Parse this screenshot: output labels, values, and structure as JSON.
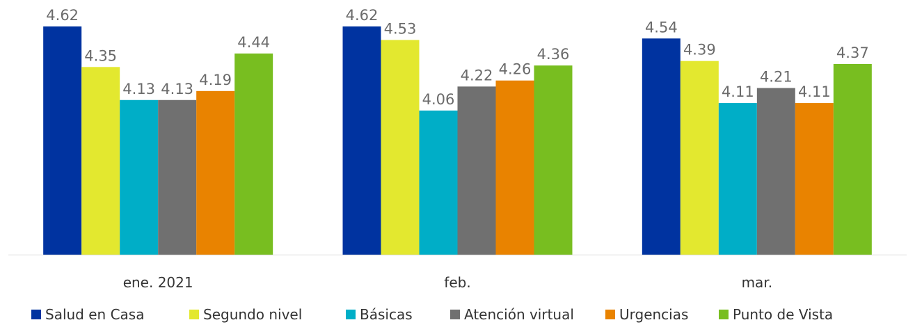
{
  "chart_data": {
    "type": "bar",
    "categories": [
      "ene. 2021",
      "feb.",
      "mar."
    ],
    "series": [
      {
        "name": "Salud en Casa",
        "color": "#0033a0",
        "values": [
          4.62,
          4.62,
          4.54
        ],
        "labels": [
          "4.62",
          "4.62",
          "4.54"
        ]
      },
      {
        "name": "Segundo nivel",
        "color": "#e3e82f",
        "values": [
          4.35,
          4.53,
          4.39
        ],
        "labels": [
          "4.35",
          "4.53",
          "4.39"
        ]
      },
      {
        "name": "Básicas",
        "color": "#00aec7",
        "values": [
          4.13,
          4.06,
          4.11
        ],
        "labels": [
          "4.13",
          "4.06",
          "4.11"
        ]
      },
      {
        "name": "Atención virtual",
        "color": "#707070",
        "values": [
          4.13,
          4.22,
          4.21
        ],
        "labels": [
          "4.13",
          "4.22",
          "4.21"
        ]
      },
      {
        "name": "Urgencias",
        "color": "#e98300",
        "values": [
          4.19,
          4.26,
          4.11
        ],
        "labels": [
          "4.19",
          "4.26",
          "4.11"
        ]
      },
      {
        "name": "Punto de Vista",
        "color": "#78be20",
        "values": [
          4.44,
          4.36,
          4.37
        ],
        "labels": [
          "4.44",
          "4.36",
          "4.37"
        ]
      }
    ],
    "ylim": [
      3.1,
      4.75
    ],
    "grid": false,
    "legend_position": "bottom",
    "axis_color": "#d9d9d9"
  }
}
